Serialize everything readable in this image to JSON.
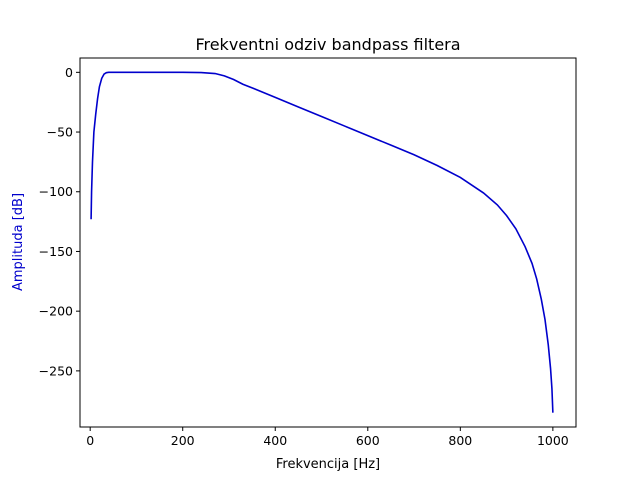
{
  "chart_data": {
    "type": "line",
    "title": "Frekventni odziv bandpass filtera",
    "xlabel": "Frekvencija [Hz]",
    "ylabel": "Amplituda [dB]",
    "xlim": [
      -22,
      1050
    ],
    "ylim": [
      -297,
      12
    ],
    "xticks": [
      0,
      200,
      400,
      600,
      800,
      1000
    ],
    "xtick_labels": [
      "0",
      "200",
      "400",
      "600",
      "800",
      "1000"
    ],
    "yticks": [
      0,
      -50,
      -100,
      -150,
      -200,
      -250
    ],
    "ytick_labels": [
      "0",
      "−50",
      "−100",
      "−150",
      "−200",
      "−250"
    ],
    "grid": false,
    "colors": {
      "line": "#0000cc",
      "ylabel": "#0000cc",
      "axes": "#000000"
    },
    "series": [
      {
        "x": [
          2,
          3,
          5,
          8,
          12,
          16,
          20,
          25,
          30,
          35,
          40,
          60,
          100,
          150,
          200,
          240,
          270,
          290,
          310,
          330,
          350,
          400,
          450,
          500,
          550,
          600,
          650,
          700,
          750,
          800,
          850,
          880,
          900,
          920,
          940,
          955,
          965,
          975,
          983,
          990,
          995,
          998,
          1000
        ],
        "y": [
          -123,
          -100,
          -75,
          -50,
          -35,
          -22,
          -12,
          -5,
          -1.5,
          -0.3,
          0,
          0,
          0,
          0,
          0,
          -0.2,
          -1,
          -3,
          -6,
          -10,
          -13,
          -21,
          -29,
          -37,
          -45,
          -53,
          -61,
          -69,
          -78,
          -88,
          -101,
          -111,
          -120,
          -131,
          -146,
          -160,
          -173,
          -190,
          -207,
          -228,
          -248,
          -265,
          -285
        ]
      }
    ]
  }
}
